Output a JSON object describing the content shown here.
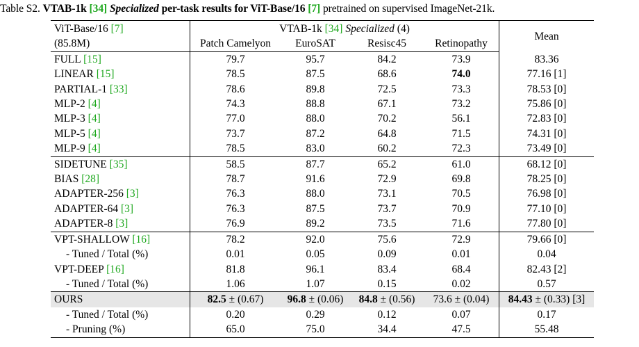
{
  "caption": {
    "prefix": "Table S2.",
    "title_bold_1": "VTAB-1k",
    "ref1": "[34]",
    "title_italic": "Specialized",
    "title_bold_2": "per-task results for ViT-Base/16",
    "ref2": "[7]",
    "suffix": "pretrained on supervised ImageNet-21k."
  },
  "header": {
    "model": "ViT-Base/16",
    "model_ref": "[7]",
    "params": "(85.8M)",
    "group_label": "VTAB-1k",
    "group_ref": "[34]",
    "group_italic": "Specialized",
    "group_count": "(4)",
    "mean": "Mean",
    "columns": [
      "Patch Camelyon",
      "EuroSAT",
      "Resisc45",
      "Retinopathy"
    ]
  },
  "rows": [
    {
      "name": "FULL",
      "ref": "[15]",
      "v": [
        "79.7",
        "95.7",
        "84.2",
        "73.9"
      ],
      "mean": "83.36"
    },
    {
      "name": "LINEAR",
      "ref": "[15]",
      "v": [
        "78.5",
        "87.5",
        "68.6",
        "74.0"
      ],
      "mean": "77.16 [1]"
    },
    {
      "name": "PARTIAL-1",
      "ref": "[33]",
      "v": [
        "78.6",
        "89.8",
        "72.5",
        "73.3"
      ],
      "mean": "78.53 [0]"
    },
    {
      "name": "MLP-2",
      "ref": "[4]",
      "v": [
        "74.3",
        "88.8",
        "67.1",
        "73.2"
      ],
      "mean": "75.86 [0]"
    },
    {
      "name": "MLP-3",
      "ref": "[4]",
      "v": [
        "77.0",
        "88.0",
        "70.2",
        "56.1"
      ],
      "mean": "72.83 [0]"
    },
    {
      "name": "MLP-5",
      "ref": "[4]",
      "v": [
        "73.7",
        "87.2",
        "64.8",
        "71.5"
      ],
      "mean": "74.31 [0]"
    },
    {
      "name": "MLP-9",
      "ref": "[4]",
      "v": [
        "78.5",
        "83.0",
        "60.2",
        "72.3"
      ],
      "mean": "73.49 [0]"
    },
    {
      "name": "SIDETUNE",
      "ref": "[35]",
      "v": [
        "58.5",
        "87.7",
        "65.2",
        "61.0"
      ],
      "mean": "68.12 [0]"
    },
    {
      "name": "BIAS",
      "ref": "[28]",
      "v": [
        "78.7",
        "91.6",
        "72.9",
        "69.8"
      ],
      "mean": "78.25 [0]"
    },
    {
      "name": "ADAPTER-256",
      "ref": "[3]",
      "v": [
        "76.3",
        "88.0",
        "73.1",
        "70.5"
      ],
      "mean": "76.98 [0]"
    },
    {
      "name": "ADAPTER-64",
      "ref": "[3]",
      "v": [
        "76.3",
        "87.5",
        "73.7",
        "70.9"
      ],
      "mean": "77.10 [0]"
    },
    {
      "name": "ADAPTER-8",
      "ref": "[3]",
      "v": [
        "76.9",
        "89.2",
        "73.5",
        "71.6"
      ],
      "mean": "77.80 [0]"
    },
    {
      "name": "VPT-SHALLOW",
      "ref": "[16]",
      "v": [
        "78.2",
        "92.0",
        "75.6",
        "72.9"
      ],
      "mean": "79.66 [0]"
    },
    {
      "name": "- Tuned / Total (%)",
      "ref": "",
      "v": [
        "0.01",
        "0.05",
        "0.09",
        "0.01"
      ],
      "mean": "0.04"
    },
    {
      "name": "VPT-DEEP",
      "ref": "[16]",
      "v": [
        "81.8",
        "96.1",
        "83.4",
        "68.4"
      ],
      "mean": "82.43 [2]"
    },
    {
      "name": "- Tuned / Total (%)",
      "ref": "",
      "v": [
        "1.06",
        "1.07",
        "0.15",
        "0.02"
      ],
      "mean": "0.57"
    }
  ],
  "ours": {
    "name": "OURS",
    "v": [
      {
        "val": "82.5",
        "sd": "± (0.67)"
      },
      {
        "val": "96.8",
        "sd": "± (0.06)"
      },
      {
        "val": "84.8",
        "sd": "± (0.56)"
      },
      {
        "val": "73.6",
        "sd": "± (0.04)"
      }
    ],
    "mean_val": "84.43",
    "mean_sd": "± (0.33) [3]"
  },
  "ours_tuned": {
    "name": "- Tuned / Total (%)",
    "v": [
      "0.20",
      "0.29",
      "0.12",
      "0.07"
    ],
    "mean": "0.17"
  },
  "ours_pruning": {
    "name": "- Pruning (%)",
    "v": [
      "65.0",
      "75.0",
      "34.4",
      "47.5"
    ],
    "mean": "55.48"
  }
}
